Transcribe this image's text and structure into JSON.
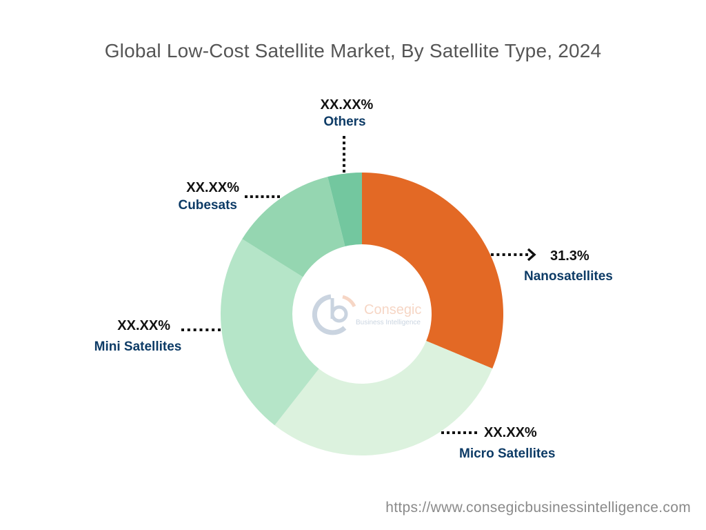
{
  "chart_data": {
    "type": "pie",
    "variant": "donut",
    "title": "Global Low-Cost Satellite Market, By Satellite Type, 2024",
    "slices": [
      {
        "name": "Nanosatellites",
        "label": "31.3%",
        "value": 31.3,
        "color": "#E36925",
        "label_color": "#E36925"
      },
      {
        "name": "Micro Satellites",
        "label": "XX.XX%",
        "value": 29.3,
        "color": "#DCF2DE",
        "label_color": "#0D3B66"
      },
      {
        "name": "Mini Satellites",
        "label": "XX.XX%",
        "value": 23.3,
        "color": "#B5E5C8",
        "label_color": "#0D3B66"
      },
      {
        "name": "Cubesats",
        "label": "XX.XX%",
        "value": 12.2,
        "color": "#95D6B1",
        "label_color": "#0D3B66"
      },
      {
        "name": "Others",
        "label": "XX.XX%",
        "value": 3.9,
        "color": "#73C79F",
        "label_color": "#0D3B66"
      }
    ],
    "start_angle": "12 o'clock, clockwise",
    "legend": "none"
  },
  "logo": {
    "name": "Consegic",
    "tagline": "Business Intelligence"
  },
  "footer": {
    "url": "https://www.consegicbusinessintelligence.com"
  }
}
